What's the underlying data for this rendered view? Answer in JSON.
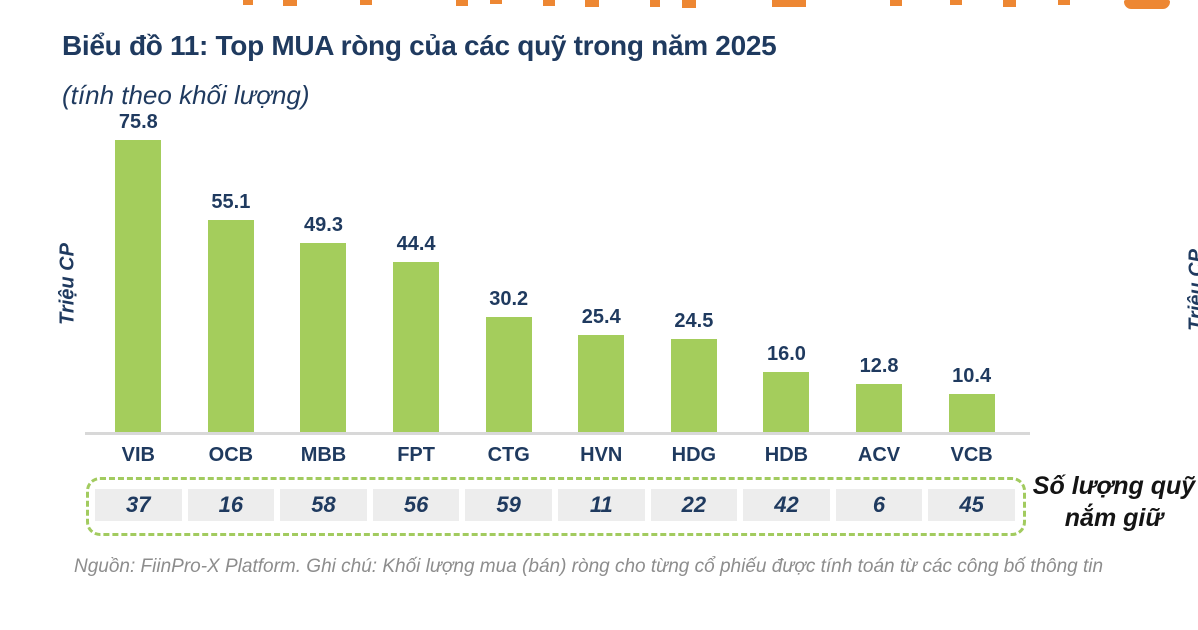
{
  "page": {
    "source_note": "Nguồn: FiinPro-X Platform. Ghi chú: Khối lượng mua (bán) ròng cho từng cổ phiếu được tính toán từ các công bố thông tin",
    "secondary_y_axis_label": "Triệu CP"
  },
  "chart_data": {
    "type": "bar",
    "title": "Biểu đồ 11: Top MUA ròng của các quỹ trong năm 2025",
    "subtitle": "(tính theo khối lượng)",
    "ylabel": "Triệu CP",
    "xlabel": "",
    "categories": [
      "VIB",
      "OCB",
      "MBB",
      "FPT",
      "CTG",
      "HVN",
      "HDG",
      "HDB",
      "ACV",
      "VCB"
    ],
    "values": [
      75.8,
      55.1,
      49.3,
      44.4,
      30.2,
      25.4,
      24.5,
      16.0,
      12.8,
      10.4
    ],
    "value_labels": [
      "75.8",
      "55.1",
      "49.3",
      "44.4",
      "30.2",
      "25.4",
      "24.5",
      "16.0",
      "12.8",
      "10.4"
    ],
    "ylim": [
      0,
      80
    ],
    "grid": false,
    "legend": false,
    "bar_color": "#A4CD5C",
    "annotation_row": {
      "label_lines": [
        "Số lượng quỹ",
        "nắm giữ"
      ],
      "values": [
        37,
        16,
        58,
        56,
        59,
        11,
        22,
        42,
        6,
        45
      ]
    }
  },
  "colors": {
    "navy_text": "#1F3A5F",
    "bar_green": "#A4CD5C",
    "dashed_border_green": "#A2CB5F",
    "band_gray": "#EDEDED",
    "axis_gray": "#D8D8D8",
    "source_gray": "#8D8D8D",
    "clipped_heading_orange": "#ED8733"
  }
}
